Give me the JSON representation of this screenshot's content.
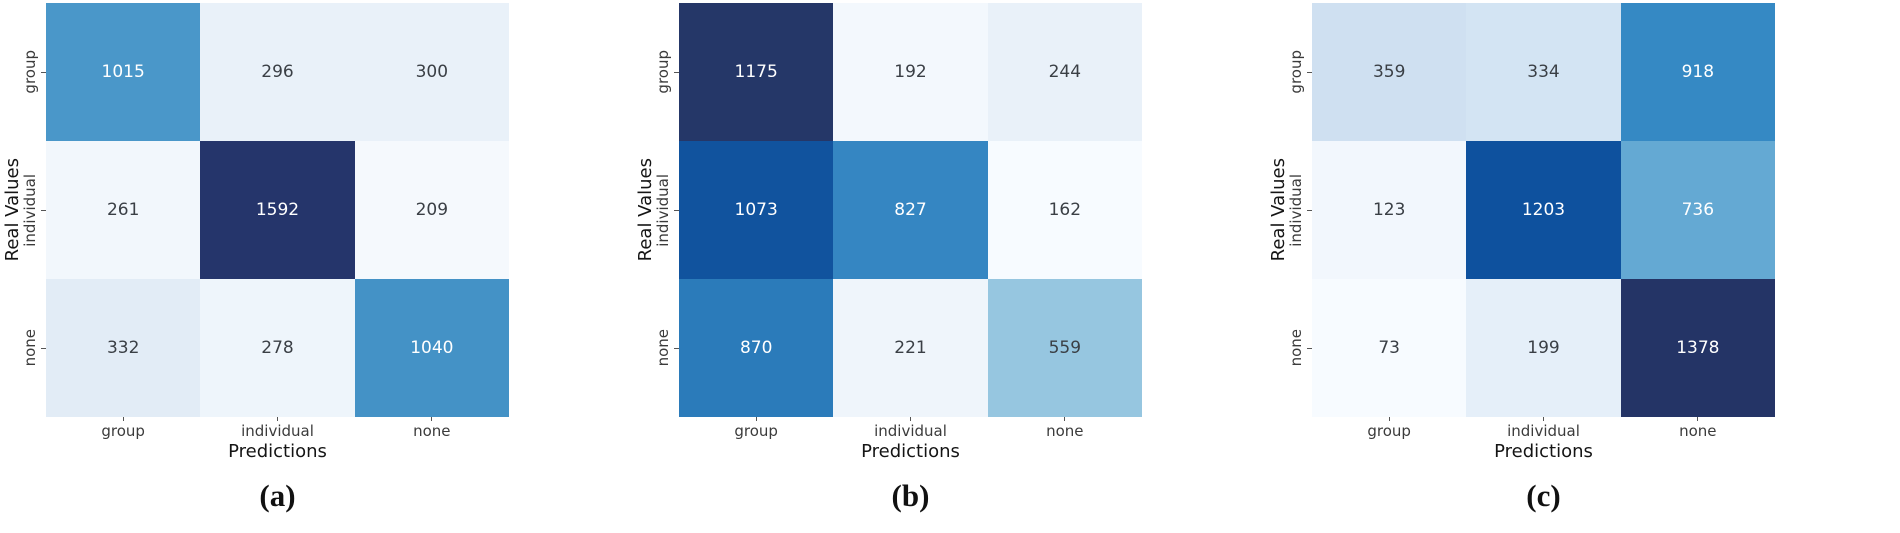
{
  "figure": {
    "background": "#ffffff",
    "tick_color": "#3b3b3b",
    "label_color": "#151515",
    "colormap": "Blues"
  },
  "chart_data": [
    {
      "type": "heatmap",
      "caption": "(a)",
      "xlabel": "Predictions",
      "ylabel": "Real Values",
      "x_categories": [
        "group",
        "individual",
        "none"
      ],
      "y_categories": [
        "group",
        "individual",
        "none"
      ],
      "values": [
        [
          1015,
          296,
          300
        ],
        [
          261,
          1592,
          209
        ],
        [
          332,
          278,
          1040
        ]
      ],
      "cell_colors": [
        [
          "#4a97c9",
          "#e9f1f9",
          "#e9f1f9"
        ],
        [
          "#f2f7fc",
          "#25356b",
          "#f5f9fd"
        ],
        [
          "#e2ecf6",
          "#eef5fb",
          "#4492c6"
        ]
      ],
      "text_colors": [
        [
          "#ffffff",
          "#3a3f45",
          "#3a3f45"
        ],
        [
          "#3a3f45",
          "#ffffff",
          "#3a3f45"
        ],
        [
          "#3a3f45",
          "#3a3f45",
          "#ffffff"
        ]
      ]
    },
    {
      "type": "heatmap",
      "caption": "(b)",
      "xlabel": "Predictions",
      "ylabel": "Real Values",
      "x_categories": [
        "group",
        "individual",
        "none"
      ],
      "y_categories": [
        "group",
        "individual",
        "none"
      ],
      "values": [
        [
          1175,
          192,
          244
        ],
        [
          1073,
          827,
          162
        ],
        [
          870,
          221,
          559
        ]
      ],
      "cell_colors": [
        [
          "#253768",
          "#f3f8fd",
          "#e9f1f9"
        ],
        [
          "#11539e",
          "#3586c2",
          "#f7fbff"
        ],
        [
          "#2b7bba",
          "#eff5fb",
          "#96c6e0"
        ]
      ],
      "text_colors": [
        [
          "#ffffff",
          "#3a3f45",
          "#3a3f45"
        ],
        [
          "#ffffff",
          "#ffffff",
          "#3a3f45"
        ],
        [
          "#ffffff",
          "#3a3f45",
          "#3a3f45"
        ]
      ]
    },
    {
      "type": "heatmap",
      "caption": "(c)",
      "xlabel": "Predictions",
      "ylabel": "Real Values",
      "x_categories": [
        "group",
        "individual",
        "none"
      ],
      "y_categories": [
        "group",
        "individual",
        "none"
      ],
      "values": [
        [
          359,
          334,
          918
        ],
        [
          123,
          1203,
          736
        ],
        [
          73,
          199,
          1378
        ]
      ],
      "cell_colors": [
        [
          "#cfe0f1",
          "#d3e4f3",
          "#3589c4"
        ],
        [
          "#f2f7fd",
          "#0e519e",
          "#64a9d3"
        ],
        [
          "#f7fbff",
          "#e5eff9",
          "#243466"
        ]
      ],
      "text_colors": [
        [
          "#3a3f45",
          "#3a3f45",
          "#ffffff"
        ],
        [
          "#3a3f45",
          "#ffffff",
          "#ffffff"
        ],
        [
          "#3a3f45",
          "#3a3f45",
          "#ffffff"
        ]
      ]
    }
  ]
}
